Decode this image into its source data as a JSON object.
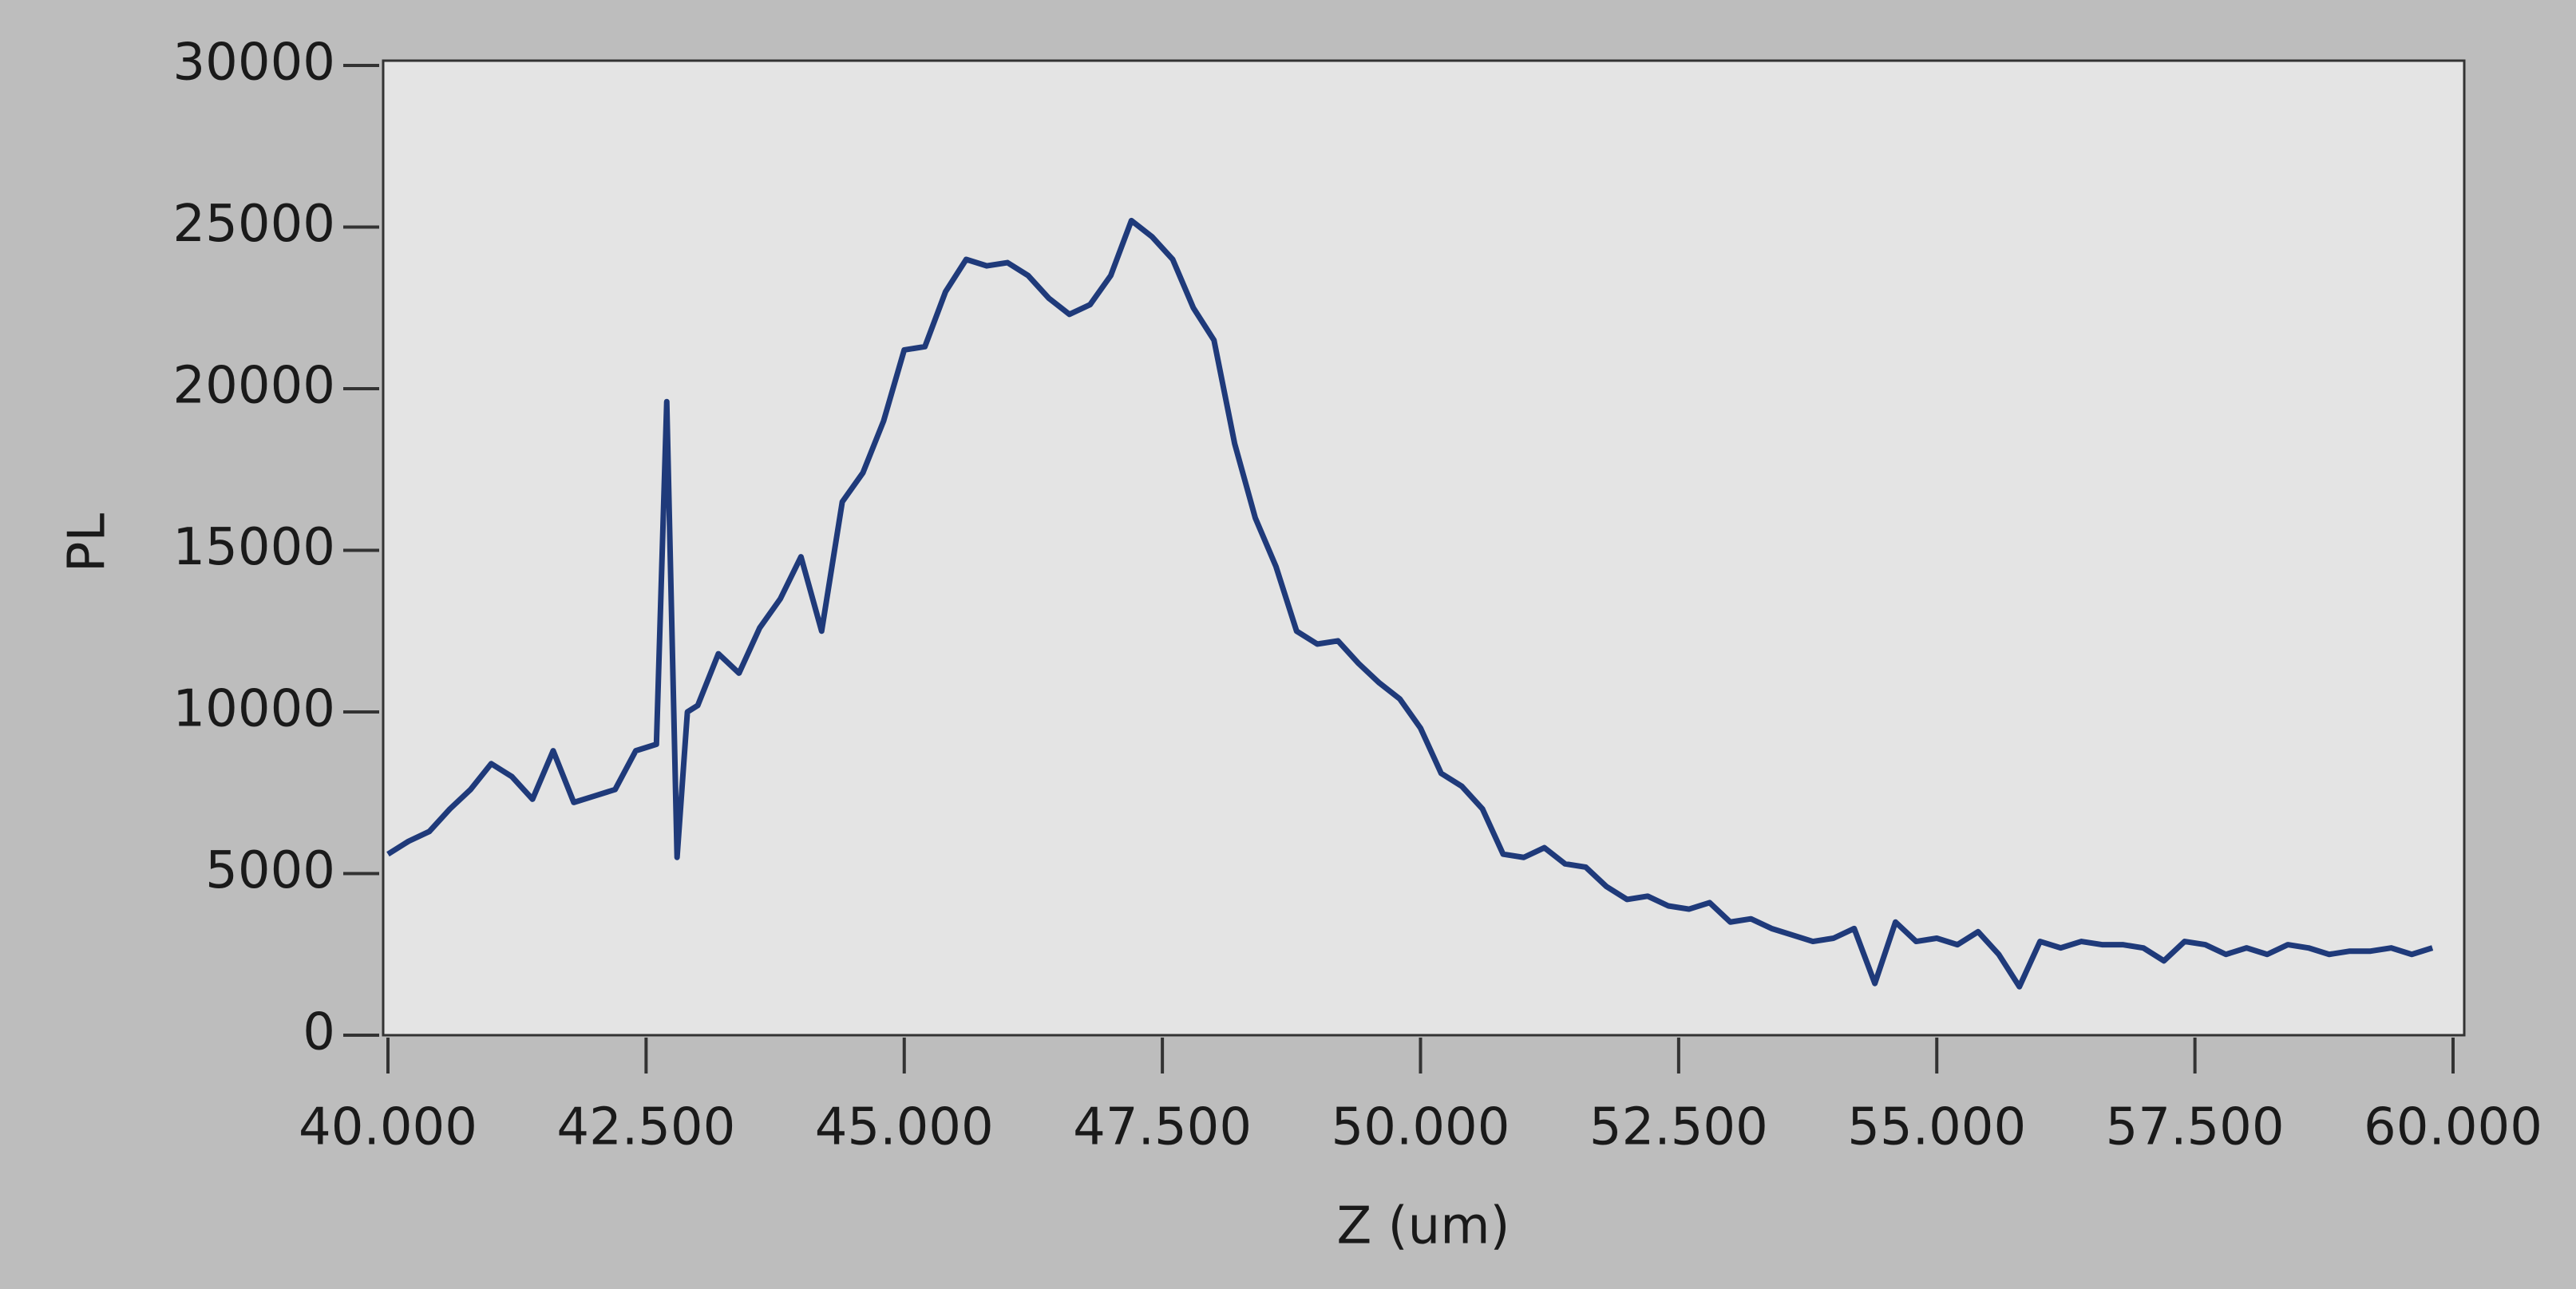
{
  "chart_data": {
    "type": "line",
    "x_label": "Z (um)",
    "y_label": "PL",
    "x": [
      40.0,
      40.2,
      40.4,
      40.6,
      40.8,
      41.0,
      41.2,
      41.4,
      41.6,
      41.8,
      42.0,
      42.2,
      42.4,
      42.6,
      42.7,
      42.8,
      42.9,
      43.0,
      43.2,
      43.4,
      43.6,
      43.8,
      44.0,
      44.2,
      44.4,
      44.6,
      44.8,
      45.0,
      45.2,
      45.4,
      45.6,
      45.8,
      46.0,
      46.2,
      46.4,
      46.6,
      46.8,
      47.0,
      47.2,
      47.4,
      47.6,
      47.8,
      48.0,
      48.2,
      48.4,
      48.6,
      48.8,
      49.0,
      49.2,
      49.4,
      49.6,
      49.8,
      50.0,
      50.2,
      50.4,
      50.6,
      50.8,
      51.0,
      51.2,
      51.4,
      51.6,
      51.8,
      52.0,
      52.2,
      52.4,
      52.6,
      52.8,
      53.0,
      53.2,
      53.4,
      53.6,
      53.8,
      54.0,
      54.2,
      54.4,
      54.6,
      54.8,
      55.0,
      55.2,
      55.4,
      55.6,
      55.8,
      56.0,
      56.2,
      56.4,
      56.6,
      56.8,
      57.0,
      57.2,
      57.4,
      57.6,
      57.8,
      58.0,
      58.2,
      58.4,
      58.6,
      58.8,
      59.0,
      59.2,
      59.4,
      59.6,
      59.8
    ],
    "series": [
      {
        "color": "#1f3a7a",
        "values": [
          5600,
          6000,
          6300,
          7000,
          7600,
          8400,
          8000,
          7300,
          8800,
          7200,
          7400,
          7600,
          8800,
          9000,
          19600,
          5500,
          10000,
          10200,
          11800,
          11200,
          12600,
          13500,
          14800,
          12500,
          16500,
          17400,
          19000,
          21200,
          21300,
          23000,
          24000,
          23800,
          23900,
          23500,
          22800,
          22300,
          22600,
          23500,
          25200,
          24700,
          24000,
          22500,
          21500,
          18300,
          16000,
          14500,
          12500,
          12100,
          12200,
          11500,
          10900,
          10400,
          9500,
          8100,
          7700,
          7000,
          5600,
          5500,
          5800,
          5300,
          5200,
          4600,
          4200,
          4300,
          4000,
          3900,
          4100,
          3500,
          3600,
          3300,
          3100,
          2900,
          3000,
          3300,
          1600,
          3500,
          2900,
          3000,
          2800,
          3200,
          2500,
          1500,
          2900,
          2700,
          2900,
          2800,
          2800,
          2700,
          2300,
          2900,
          2800,
          2500,
          2700,
          2500,
          2800,
          2700,
          2500,
          2600,
          2600,
          2700,
          2500,
          2700
        ]
      }
    ],
    "xlim": [
      40,
      60
    ],
    "xticks": [
      {
        "value": 40,
        "label": "40.000"
      },
      {
        "value": 42.5,
        "label": "42.500"
      },
      {
        "value": 45,
        "label": "45.000"
      },
      {
        "value": 47.5,
        "label": "47.500"
      },
      {
        "value": 50,
        "label": "50.000"
      },
      {
        "value": 52.5,
        "label": "52.500"
      },
      {
        "value": 55,
        "label": "55.000"
      },
      {
        "value": 57.5,
        "label": "57.500"
      },
      {
        "value": 60,
        "label": "60.000"
      }
    ],
    "ylim": [
      0,
      30000
    ],
    "yticks": [
      0,
      5000,
      10000,
      15000,
      20000,
      25000,
      30000
    ]
  }
}
